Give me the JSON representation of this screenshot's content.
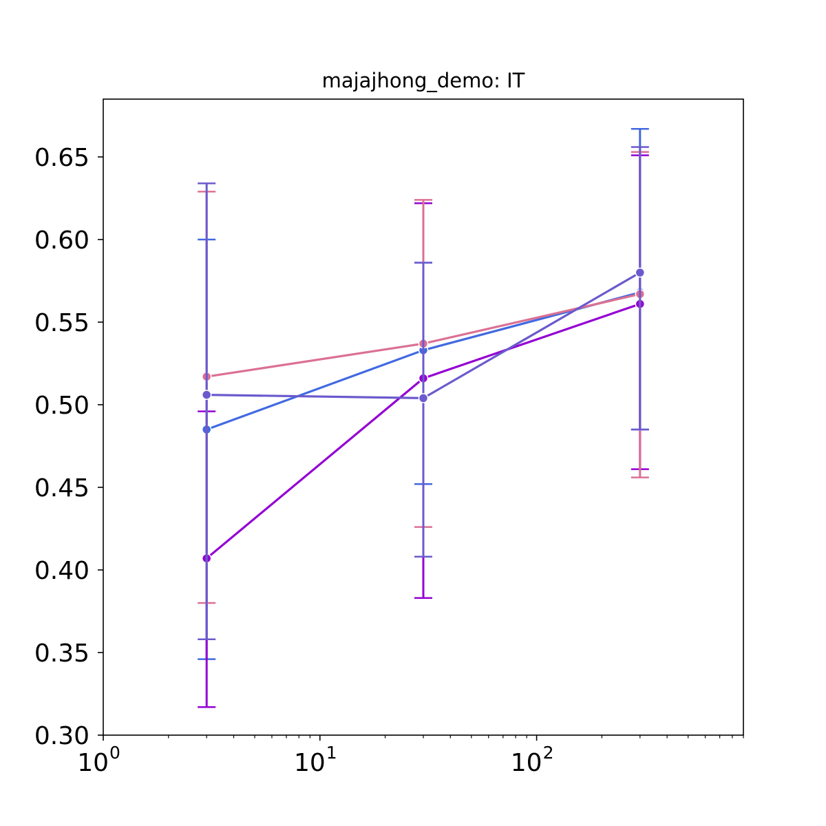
{
  "chart_data": {
    "type": "line",
    "title": "majajhong_demo: IT",
    "xlabel": "",
    "ylabel": "",
    "xscale": "log",
    "xlim": [
      1,
      900
    ],
    "ylim": [
      0.3,
      0.685
    ],
    "x_ticks": [
      {
        "value": 1,
        "base": "10",
        "exp": "0"
      },
      {
        "value": 10,
        "base": "10",
        "exp": "1"
      },
      {
        "value": 100,
        "base": "10",
        "exp": "2"
      }
    ],
    "y_ticks": [
      {
        "value": 0.3,
        "label": "0.30"
      },
      {
        "value": 0.35,
        "label": "0.35"
      },
      {
        "value": 0.4,
        "label": "0.40"
      },
      {
        "value": 0.45,
        "label": "0.45"
      },
      {
        "value": 0.5,
        "label": "0.50"
      },
      {
        "value": 0.55,
        "label": "0.55"
      },
      {
        "value": 0.6,
        "label": "0.60"
      },
      {
        "value": 0.65,
        "label": "0.65"
      }
    ],
    "grid": false,
    "legend": "none",
    "series": [
      {
        "color": "#4169e1",
        "x": [
          3,
          30,
          300
        ],
        "y": [
          0.485,
          0.533,
          0.568
        ],
        "err_low": [
          0.346,
          0.452,
          0.485
        ],
        "err_high": [
          0.6,
          0.586,
          0.667
        ]
      },
      {
        "color": "#9400d3",
        "x": [
          3,
          30,
          300
        ],
        "y": [
          0.407,
          0.516,
          0.561
        ],
        "err_low": [
          0.317,
          0.383,
          0.461
        ],
        "err_high": [
          0.496,
          0.622,
          0.651
        ]
      },
      {
        "color": "#db7093",
        "x": [
          3,
          30,
          300
        ],
        "y": [
          0.517,
          0.537,
          0.567
        ],
        "err_low": [
          0.38,
          0.426,
          0.456
        ],
        "err_high": [
          0.629,
          0.624,
          0.653
        ]
      },
      {
        "color": "#6a5acd",
        "x": [
          3,
          30,
          300
        ],
        "y": [
          0.506,
          0.504,
          0.58
        ],
        "err_low": [
          0.358,
          0.408,
          0.485
        ],
        "err_high": [
          0.634,
          0.586,
          0.656
        ]
      }
    ]
  }
}
